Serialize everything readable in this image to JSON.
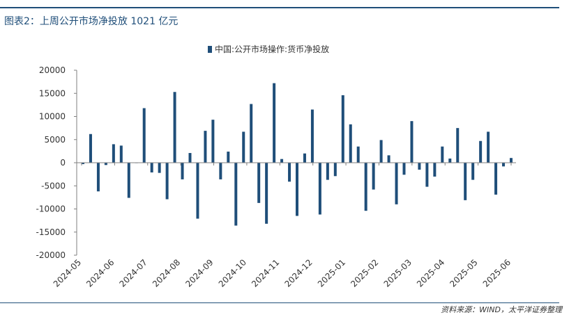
{
  "figure_title": "图表2：上周公开市场净投放 1021 亿元",
  "source": "资料来源：WIND，太平洋证券整理",
  "colors": {
    "bar": "#1f4e79",
    "accent": "#1f4e79",
    "axis": "#7f7f7f"
  },
  "chart_data": {
    "type": "bar",
    "title": "",
    "legend": [
      {
        "label": "中国:公开市场操作:货币净投放",
        "position": "top"
      }
    ],
    "xlabel": "",
    "ylabel": "",
    "ylim": [
      -20000,
      20000
    ],
    "yticks": [
      20000,
      15000,
      10000,
      5000,
      0,
      -5000,
      -10000,
      -15000,
      -20000
    ],
    "x_tick_labels": [
      "2024-05",
      "2024-06",
      "2024-07",
      "2024-08",
      "2024-09",
      "2024-10",
      "2024-11",
      "2024-12",
      "2025-01",
      "2025-02",
      "2025-03",
      "2025-04",
      "2025-05",
      "2025-06"
    ],
    "grid": false,
    "series": [
      {
        "name": "中国:公开市场操作:货币净投放",
        "values": [
          -300,
          6200,
          -6200,
          -500,
          4000,
          3700,
          -7600,
          0,
          11800,
          -2100,
          -2200,
          -7900,
          15300,
          -3600,
          2100,
          -12100,
          6900,
          9300,
          -3600,
          2400,
          -13600,
          6700,
          12700,
          -8700,
          -13200,
          17200,
          800,
          -4100,
          -11500,
          2000,
          11500,
          -11200,
          -3700,
          -2900,
          14600,
          8300,
          3500,
          -10400,
          -5800,
          4900,
          1600,
          -9000,
          -2600,
          9000,
          -1500,
          -5200,
          -3000,
          3500,
          900,
          7500,
          -8100,
          -3700,
          4700,
          6700,
          -6900,
          -800,
          1021
        ]
      }
    ]
  }
}
